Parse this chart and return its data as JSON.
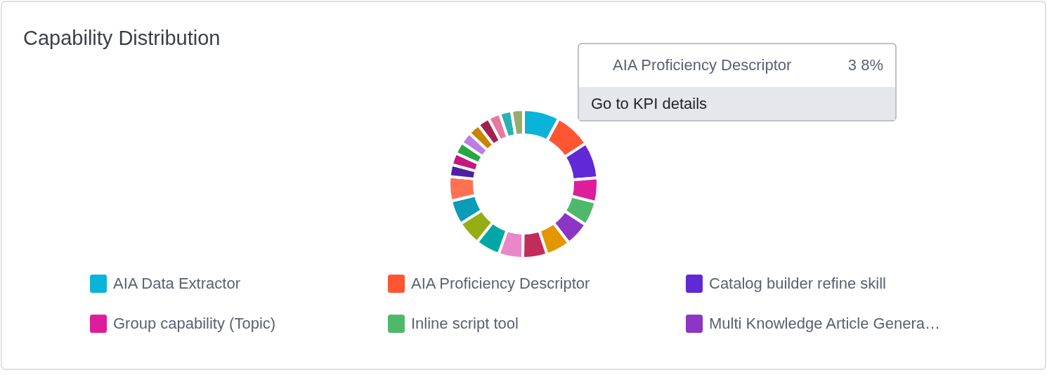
{
  "chart_data": {
    "type": "donut",
    "title": "Capability Distribution",
    "categories": [
      "AIA Data Extractor",
      "AIA Proficiency Descriptor",
      "Catalog builder refine skill",
      "Group capability (Topic)",
      "Inline script tool",
      "Multi Knowledge Article Genera…",
      null,
      null,
      null,
      null,
      null,
      null,
      null,
      null,
      null,
      null,
      null,
      null,
      null,
      null,
      null,
      null
    ],
    "values": [
      7.9,
      7.9,
      7.9,
      5.3,
      5.3,
      5.3,
      5.3,
      5.3,
      5.3,
      5.3,
      5.3,
      5.3,
      5.3,
      2.6,
      2.6,
      2.6,
      2.6,
      2.6,
      2.6,
      2.6,
      2.6,
      2.6
    ],
    "colors": [
      "#0ab4d8",
      "#ff5533",
      "#6128d6",
      "#dd1e9a",
      "#4fb96b",
      "#8b36c4",
      "#e39600",
      "#c02c5c",
      "#ea87cb",
      "#00a7a6",
      "#97ad15",
      "#0b9cb8",
      "#ff7152",
      "#4f1fa6",
      "#c4177f",
      "#27a744",
      "#bd7ee4",
      "#c88400",
      "#a3214f",
      "#e8799d",
      "#2bb1b3",
      "#97ab6c"
    ],
    "legend": "bottom",
    "annotations": [
      "AIA Proficiency Descriptor",
      "3 8%",
      "Go to KPI details"
    ]
  }
}
